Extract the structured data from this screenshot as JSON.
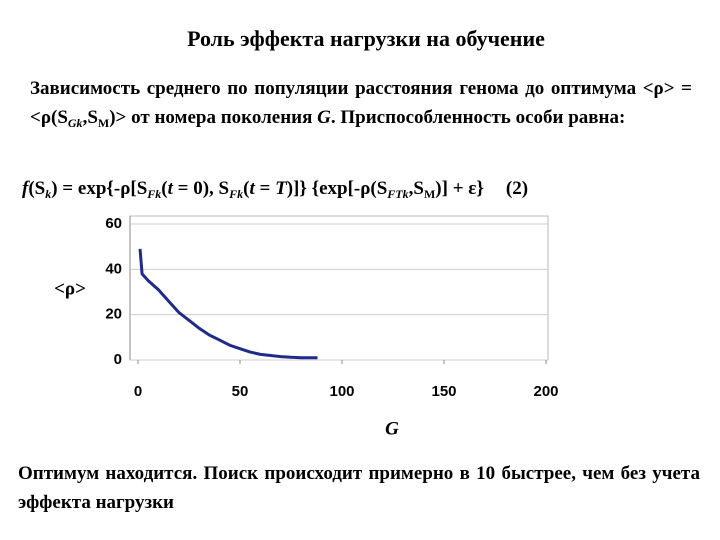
{
  "title": "Роль эффекта нагрузки на обучение",
  "paragraph": [
    "Зависимость среднего по популяции расстояния генома до оптимума <ρ> = <ρ(S",
    "Gk",
    ",S",
    "M",
    ")> от номера поколения ",
    "G",
    ". Приспособленность особи равна:"
  ],
  "formula": [
    "f",
    "(S",
    "k",
    ") = exp{-ρ[S",
    "Fk",
    "(",
    "t",
    " = 0), S",
    "Fk",
    "(",
    "t",
    " = ",
    "T",
    ")]} {exp[-ρ(S",
    "FTk",
    ",S",
    "M",
    ")] + ε}",
    "(2)"
  ],
  "conclusion": "Оптимум находится. Поиск происходит примерно в 10 быстрее, чем без учета эффекта нагрузки",
  "chart_data": {
    "type": "line",
    "x_label": "G",
    "y_label": "<ρ>",
    "xlim": [
      0,
      200
    ],
    "xticks": [
      0,
      50,
      100,
      150,
      200
    ],
    "ylim": [
      0,
      60
    ],
    "yticks": [
      0,
      20,
      40,
      60
    ],
    "grid": true,
    "series": [
      {
        "color": "#1f2a8a",
        "x": [
          1,
          2,
          5,
          10,
          15,
          20,
          25,
          30,
          35,
          40,
          45,
          50,
          55,
          60,
          65,
          70,
          75,
          80,
          88
        ],
        "values": [
          49,
          38,
          35,
          31,
          26,
          21,
          17.5,
          14,
          11,
          8.8,
          6.5,
          5,
          3.5,
          2.5,
          2,
          1.5,
          1.2,
          1,
          1
        ]
      }
    ]
  }
}
